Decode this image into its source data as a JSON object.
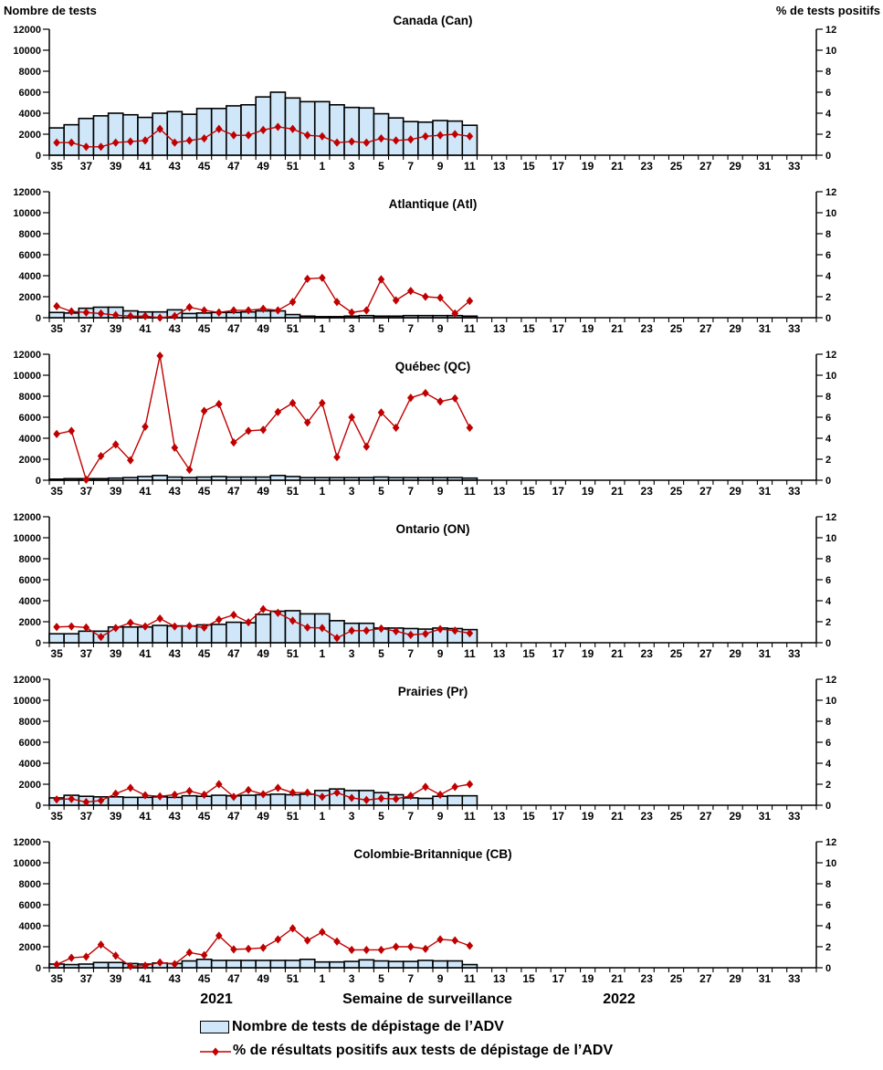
{
  "footer": {
    "year_left": "2021",
    "x_axis_title": "Semaine de surveillance",
    "year_right": "2022"
  },
  "legend": {
    "bar_label": "Nombre de tests de dépistage de l’ADV",
    "line_label": "% de résultats positifs aux tests de dépistage de l’ADV"
  },
  "colors": {
    "bar_fill": "#CFE7F8",
    "bar_border": "#000000",
    "line": "#C00000",
    "axis": "#000000"
  },
  "chart_data": {
    "type": "bar+line",
    "left_axis": {
      "title": "Nombre de tests",
      "min": 0,
      "max": 12000,
      "step": 2000
    },
    "right_axis": {
      "title": "% de tests positifs",
      "min": 0,
      "max": 12,
      "step": 2
    },
    "x_axis": {
      "first_week": 35,
      "weeks_2021": 18,
      "total_slots": 52,
      "tick_labels": [
        35,
        37,
        39,
        41,
        43,
        45,
        47,
        49,
        51,
        1,
        3,
        5,
        7,
        9,
        11,
        13,
        15,
        17,
        19,
        21,
        23,
        25,
        27,
        29,
        31,
        33
      ]
    },
    "data_weeks": [
      35,
      36,
      37,
      38,
      39,
      40,
      41,
      42,
      43,
      44,
      45,
      46,
      47,
      48,
      49,
      50,
      51,
      52,
      1,
      2,
      3,
      4,
      5,
      6,
      7,
      8,
      9,
      10,
      11
    ],
    "panels": [
      {
        "title": "Canada (Can)",
        "abbr": "can",
        "tests": [
          2600,
          2900,
          3500,
          3750,
          4000,
          3850,
          3600,
          4000,
          4150,
          3900,
          4450,
          4450,
          4700,
          4800,
          5550,
          6000,
          5450,
          5100,
          5100,
          4800,
          4550,
          4500,
          3950,
          3550,
          3200,
          3150,
          3300,
          3250,
          2850
        ],
        "pct_positive": [
          1.2,
          1.2,
          0.8,
          0.8,
          1.2,
          1.3,
          1.4,
          2.5,
          1.2,
          1.4,
          1.6,
          2.5,
          1.9,
          1.9,
          2.4,
          2.7,
          2.5,
          1.9,
          1.8,
          1.2,
          1.3,
          1.2,
          1.6,
          1.4,
          1.5,
          1.8,
          1.9,
          2.0,
          1.8
        ]
      },
      {
        "title": "Atlantique (Atl)",
        "abbr": "atl",
        "tests": [
          500,
          450,
          900,
          1000,
          1000,
          650,
          550,
          550,
          750,
          400,
          450,
          500,
          500,
          550,
          650,
          650,
          300,
          150,
          100,
          100,
          150,
          200,
          150,
          150,
          200,
          200,
          200,
          200,
          150
        ],
        "pct_positive": [
          1.1,
          0.6,
          0.5,
          0.4,
          0.25,
          0.15,
          0.15,
          0.0,
          0.15,
          1.0,
          0.7,
          0.5,
          0.7,
          0.7,
          0.85,
          0.7,
          1.5,
          3.7,
          3.8,
          1.5,
          0.5,
          0.7,
          3.65,
          1.65,
          2.55,
          2.0,
          1.9,
          0.4,
          1.6
        ]
      },
      {
        "title": "Québec (QC)",
        "abbr": "qc",
        "tests": [
          100,
          150,
          150,
          150,
          200,
          250,
          350,
          450,
          300,
          250,
          300,
          350,
          300,
          300,
          300,
          450,
          350,
          250,
          250,
          250,
          250,
          250,
          300,
          250,
          250,
          250,
          250,
          250,
          200
        ],
        "pct_positive": [
          4.4,
          4.7,
          0.05,
          2.3,
          3.4,
          1.9,
          5.1,
          11.85,
          3.1,
          1.0,
          6.6,
          7.25,
          3.6,
          4.7,
          4.8,
          6.5,
          7.35,
          5.5,
          7.35,
          2.2,
          6.0,
          3.2,
          6.45,
          5.0,
          7.85,
          8.3,
          7.5,
          7.8,
          5.0
        ]
      },
      {
        "title": "Ontario (ON)",
        "abbr": "on",
        "tests": [
          850,
          850,
          1100,
          1100,
          1500,
          1500,
          1500,
          1650,
          1600,
          1600,
          1700,
          1750,
          1950,
          1900,
          2700,
          3000,
          3050,
          2750,
          2750,
          2100,
          1850,
          1850,
          1400,
          1400,
          1350,
          1300,
          1400,
          1350,
          1250
        ],
        "pct_positive": [
          1.5,
          1.55,
          1.45,
          0.55,
          1.4,
          1.9,
          1.55,
          2.3,
          1.55,
          1.6,
          1.45,
          2.2,
          2.65,
          1.95,
          3.2,
          2.85,
          2.1,
          1.45,
          1.4,
          0.45,
          1.15,
          1.15,
          1.35,
          1.1,
          0.75,
          0.85,
          1.3,
          1.15,
          0.9
        ]
      },
      {
        "title": "Prairies (Pr)",
        "abbr": "pr",
        "tests": [
          700,
          950,
          850,
          800,
          800,
          750,
          750,
          800,
          750,
          900,
          850,
          950,
          900,
          950,
          1000,
          1050,
          1000,
          1050,
          1400,
          1550,
          1400,
          1400,
          1200,
          1000,
          700,
          650,
          850,
          900,
          900
        ],
        "pct_positive": [
          0.55,
          0.6,
          0.3,
          0.45,
          1.1,
          1.65,
          0.95,
          0.85,
          1.0,
          1.35,
          1.0,
          2.0,
          0.8,
          1.45,
          1.05,
          1.65,
          1.2,
          1.2,
          0.8,
          1.2,
          0.7,
          0.5,
          0.65,
          0.6,
          0.9,
          1.75,
          1.0,
          1.75,
          2.0
        ]
      },
      {
        "title": "Colombie-Britannique (CB)",
        "abbr": "cb",
        "tests": [
          350,
          300,
          350,
          500,
          500,
          400,
          350,
          450,
          400,
          650,
          800,
          700,
          700,
          700,
          700,
          700,
          700,
          800,
          550,
          550,
          600,
          750,
          650,
          600,
          600,
          700,
          650,
          650,
          300
        ],
        "pct_positive": [
          0.3,
          0.95,
          1.05,
          2.2,
          1.15,
          0.15,
          0.2,
          0.5,
          0.35,
          1.45,
          1.2,
          3.05,
          1.75,
          1.8,
          1.9,
          2.7,
          3.75,
          2.6,
          3.4,
          2.5,
          1.7,
          1.7,
          1.7,
          2.0,
          2.0,
          1.8,
          2.7,
          2.6,
          2.1
        ]
      }
    ]
  }
}
